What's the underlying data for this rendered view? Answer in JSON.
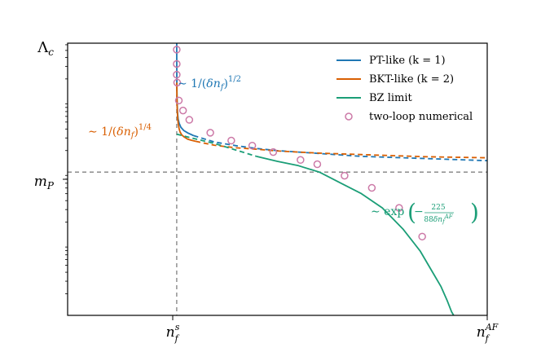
{
  "chart_data": {
    "type": "line",
    "x_axis": {
      "label": "",
      "tick_labels": [
        "n_f^s",
        "n_f^AF"
      ]
    },
    "y_axis": {
      "label": "Λ_c",
      "scale": "log",
      "tick_labels": [
        "m_P"
      ]
    },
    "grid": false,
    "legend_position": "top-right",
    "colors": {
      "pt": "#1f77b4",
      "bkt": "#d95f02",
      "bz": "#1b9e77",
      "markers": "#cc79a7",
      "guide": "#808080"
    },
    "legend": [
      {
        "key": "pt",
        "label": "PT-like (k = 1)",
        "style": "line"
      },
      {
        "key": "bkt",
        "label": "BKT-like (k = 2)",
        "style": "line"
      },
      {
        "key": "bz",
        "label": "BZ limit",
        "style": "line"
      },
      {
        "key": "markers",
        "label": "two-loop numerical",
        "style": "marker"
      }
    ],
    "annotations": {
      "pt": "∼ 1/(δn_f)^1/2",
      "bkt": "∼ 1/(δn_f)^1/4",
      "bz": "∼ exp(−225/(88 δn_f^AF))"
    },
    "x_range": [
      0,
      1
    ],
    "y_range": [
      -2.0,
      1.8
    ],
    "x_ns": 0.26,
    "y_mP": 0,
    "series": [
      {
        "key": "pt",
        "solid_x": [
          0.26,
          0.2601,
          0.2603,
          0.2606,
          0.261,
          0.262,
          0.2635,
          0.266,
          0.27,
          0.277,
          0.287,
          0.3
        ],
        "solid_y": [
          1.8,
          1.58,
          1.29,
          1.11,
          0.98,
          0.83,
          0.74,
          0.68,
          0.625,
          0.58,
          0.545,
          0.51
        ],
        "dashed_x": [
          0.3,
          0.35,
          0.4,
          0.45,
          0.5,
          0.55,
          0.6,
          0.65,
          0.7,
          0.75,
          0.8,
          0.85,
          0.9,
          0.95,
          1.0
        ],
        "dashed_y": [
          0.51,
          0.42,
          0.37,
          0.33,
          0.3,
          0.28,
          0.26,
          0.24,
          0.22,
          0.21,
          0.2,
          0.19,
          0.18,
          0.17,
          0.16
        ]
      },
      {
        "key": "bkt",
        "solid_x": [
          0.2602,
          0.2605,
          0.261,
          0.262,
          0.2635,
          0.2655,
          0.268,
          0.272,
          0.278,
          0.286,
          0.295,
          0.305
        ],
        "solid_y": [
          1.25,
          1.05,
          0.92,
          0.78,
          0.68,
          0.61,
          0.56,
          0.52,
          0.49,
          0.46,
          0.445,
          0.43
        ],
        "dashed_x": [
          0.305,
          0.35,
          0.4,
          0.45,
          0.5,
          0.55,
          0.6,
          0.65,
          0.7,
          0.75,
          0.8,
          0.85,
          0.9,
          0.95,
          1.0
        ],
        "dashed_y": [
          0.43,
          0.375,
          0.34,
          0.32,
          0.295,
          0.28,
          0.265,
          0.255,
          0.245,
          0.235,
          0.225,
          0.215,
          0.21,
          0.205,
          0.2
        ]
      },
      {
        "key": "bz",
        "dashed_x": [
          0.26,
          0.3,
          0.35,
          0.4,
          0.45
        ],
        "dashed_y": [
          0.53,
          0.47,
          0.4,
          0.31,
          0.22
        ],
        "solid_x": [
          0.45,
          0.5,
          0.55,
          0.6,
          0.65,
          0.7,
          0.75,
          0.8,
          0.84,
          0.87,
          0.89,
          0.905,
          0.915,
          0.92
        ],
        "solid_y": [
          0.22,
          0.15,
          0.09,
          0.0,
          -0.15,
          -0.3,
          -0.5,
          -0.8,
          -1.1,
          -1.4,
          -1.6,
          -1.8,
          -1.95,
          -2.0
        ]
      }
    ],
    "markers": {
      "x": [
        0.26,
        0.26,
        0.26,
        0.261,
        0.265,
        0.275,
        0.29,
        0.34,
        0.39,
        0.44,
        0.49,
        0.555,
        0.595,
        0.66,
        0.725,
        0.79,
        0.845
      ],
      "y": [
        1.71,
        1.51,
        1.36,
        1.25,
        1.0,
        0.86,
        0.73,
        0.55,
        0.44,
        0.37,
        0.28,
        0.17,
        0.11,
        -0.05,
        -0.22,
        -0.5,
        -0.9
      ]
    }
  }
}
